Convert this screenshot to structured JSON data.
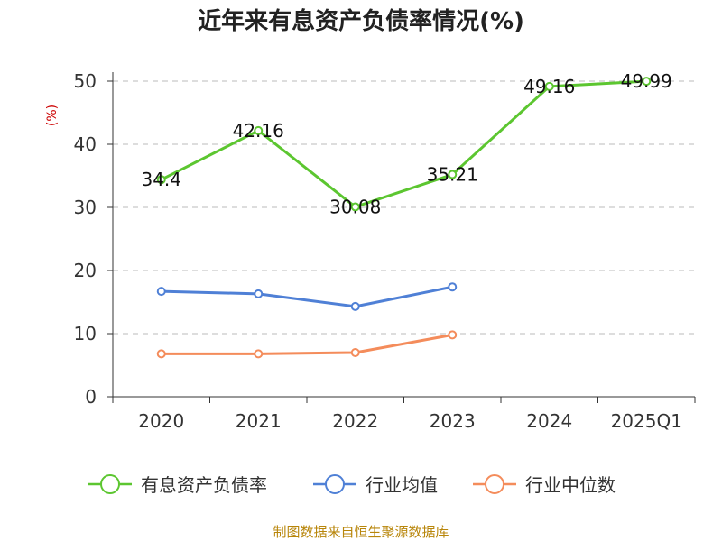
{
  "chart_data": {
    "type": "line",
    "title": "近年来有息资产负债率情况(%)",
    "ylabel": "(%)",
    "categories": [
      "2020",
      "2021",
      "2022",
      "2023",
      "2024",
      "2025Q1"
    ],
    "y_ticks": [
      "0",
      "10",
      "20",
      "30",
      "40",
      "50"
    ],
    "ylim": [
      0,
      50
    ],
    "grid": true,
    "legend_position": "bottom",
    "series": [
      {
        "name": "有息资产负债率",
        "color": "#5cc630",
        "values": [
          34.4,
          42.16,
          30.08,
          35.21,
          49.16,
          49.99
        ],
        "labels": [
          "34.4",
          "42.16",
          "30.08",
          "35.21",
          "49.16",
          "49.99"
        ]
      },
      {
        "name": "行业均值",
        "color": "#4f80d6",
        "values": [
          16.7,
          16.3,
          14.3,
          17.4,
          null,
          null
        ],
        "labels": null
      },
      {
        "name": "行业中位数",
        "color": "#f48c5b",
        "values": [
          6.8,
          6.8,
          7.0,
          9.8,
          null,
          null
        ],
        "labels": null
      }
    ]
  },
  "source": "制图数据来自恒生聚源数据库"
}
